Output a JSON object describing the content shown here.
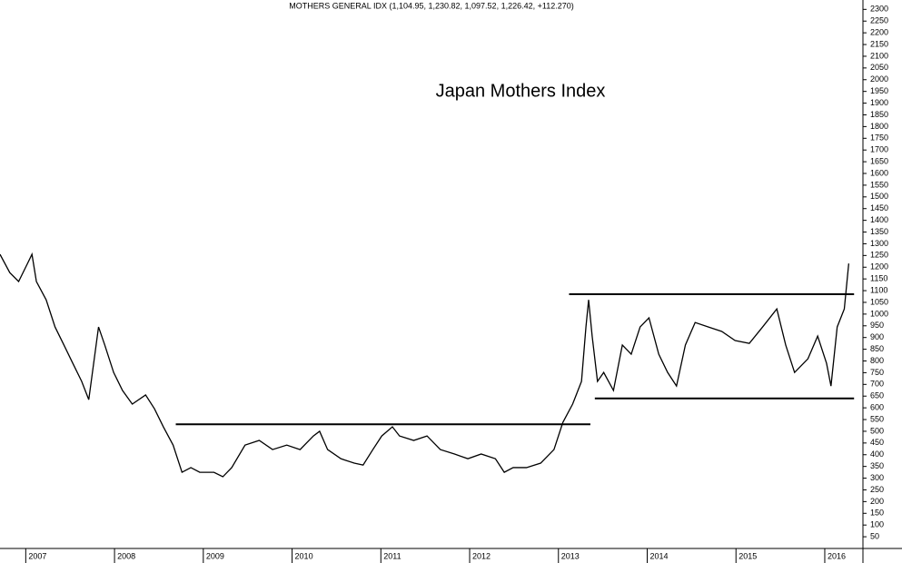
{
  "chart_data": {
    "type": "line",
    "title": "Japan Mothers Index",
    "subtitle": "MOTHERS GENERAL IDX (1,104.95, 1,230.82, 1,097.52, 1,226.42, +112.270)",
    "x": [
      2006.71,
      2006.82,
      2006.92,
      2007.02,
      2007.07,
      2007.12,
      2007.23,
      2007.33,
      2007.43,
      2007.53,
      2007.63,
      2007.71,
      2007.82,
      2007.89,
      2007.99,
      2008.09,
      2008.2,
      2008.35,
      2008.45,
      2008.55,
      2008.66,
      2008.76,
      2008.86,
      2008.96,
      2009.12,
      2009.22,
      2009.32,
      2009.47,
      2009.63,
      2009.78,
      2009.94,
      2010.09,
      2010.24,
      2010.31,
      2010.4,
      2010.55,
      2010.7,
      2010.8,
      2010.91,
      2011.01,
      2011.13,
      2011.21,
      2011.37,
      2011.52,
      2011.67,
      2011.83,
      2011.98,
      2012.13,
      2012.29,
      2012.39,
      2012.49,
      2012.64,
      2012.8,
      2012.95,
      2013.05,
      2013.16,
      2013.26,
      2013.31,
      2013.34,
      2013.38,
      2013.44,
      2013.51,
      2013.62,
      2013.72,
      2013.82,
      2013.92,
      2014.02,
      2014.13,
      2014.23,
      2014.33,
      2014.43,
      2014.54,
      2014.69,
      2014.84,
      2014.99,
      2015.15,
      2015.3,
      2015.46,
      2015.56,
      2015.66,
      2015.81,
      2015.92,
      2016.02,
      2016.07,
      2016.14,
      2016.22,
      2016.27
    ],
    "series": [
      {
        "name": "MOTHERS GENERAL IDX",
        "color": "#000000",
        "values": [
          1255,
          1177,
          1139,
          1216,
          1255,
          1139,
          1061,
          945,
          868,
          790,
          713,
          635,
          945,
          868,
          751,
          674,
          616,
          655,
          596,
          519,
          441,
          325,
          345,
          325,
          325,
          306,
          345,
          441,
          461,
          422,
          441,
          422,
          480,
          500,
          422,
          383,
          364,
          356,
          422,
          480,
          519,
          480,
          461,
          480,
          422,
          403,
          383,
          403,
          383,
          325,
          345,
          345,
          364,
          422,
          538,
          616,
          713,
          945,
          1061,
          906,
          713,
          751,
          674,
          868,
          829,
          945,
          984,
          829,
          751,
          693,
          868,
          964,
          945,
          926,
          887,
          875,
          945,
          1022,
          868,
          751,
          809,
          906,
          790,
          693,
          945,
          1022,
          1216
        ]
      }
    ],
    "lines": [
      {
        "y": 530,
        "x": [
          2008.69,
          2013.36
        ]
      },
      {
        "y": 1085,
        "x": [
          2013.12,
          2016.33
        ]
      },
      {
        "y": 640,
        "x": [
          2013.41,
          2016.33
        ]
      }
    ],
    "xlim": [
      2006.71,
      2016.43
    ],
    "xticks": [
      2007,
      2008,
      2009,
      2010,
      2011,
      2012,
      2013,
      2014,
      2015,
      2016
    ],
    "ylim": [
      0,
      2340
    ],
    "yticks": [
      50,
      100,
      150,
      200,
      250,
      300,
      350,
      400,
      450,
      500,
      550,
      600,
      650,
      700,
      750,
      800,
      850,
      900,
      950,
      1000,
      1050,
      1100,
      1150,
      1200,
      1250,
      1300,
      1350,
      1400,
      1450,
      1500,
      1550,
      1600,
      1650,
      1700,
      1750,
      1800,
      1850,
      1900,
      1950,
      2000,
      2050,
      2100,
      2150,
      2200,
      2250,
      2300
    ],
    "grid": false
  }
}
